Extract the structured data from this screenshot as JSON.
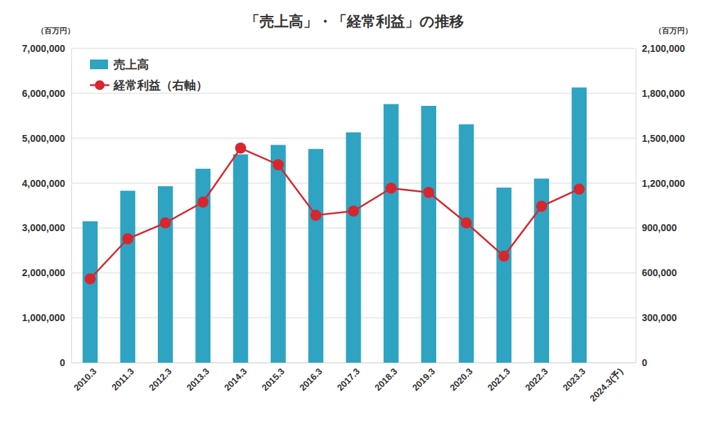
{
  "chart_data": {
    "type": "bar",
    "title": "「売上高」・「経常利益」の推移",
    "ylabel": "（百万円）",
    "y2label": "（百万円）",
    "categories": [
      "2010.3",
      "2011.3",
      "2012.3",
      "2013.3",
      "2014.3",
      "2015.3",
      "2016.3",
      "2017.3",
      "2018.3",
      "2019.3",
      "2020.3",
      "2021.3",
      "2022.3",
      "2023.3",
      "2024.3(予)"
    ],
    "series": [
      {
        "name": "売上高",
        "type": "bar",
        "color": "#2ea3c2",
        "values": [
          3150000,
          3830000,
          3930000,
          4320000,
          4640000,
          4850000,
          4760000,
          5130000,
          5760000,
          5720000,
          5310000,
          3900000,
          4100000,
          6130000,
          null
        ]
      },
      {
        "name": "経常利益（右軸）",
        "type": "line",
        "axis": "y2",
        "color": "#d7262e",
        "marker": "circle",
        "values": [
          560000,
          828000,
          934000,
          1073000,
          1434000,
          1323000,
          985000,
          1013000,
          1166000,
          1138000,
          934000,
          712000,
          1045000,
          1160000,
          null
        ]
      }
    ],
    "ylim": [
      0,
      7000000
    ],
    "yticks": [
      0,
      {
        "value": 1000000,
        "label": "1,000,000"
      },
      {
        "value": 2000000,
        "label": "2,000,000"
      },
      {
        "value": 3000000,
        "label": "3,000,000"
      },
      {
        "value": 4000000,
        "label": "4,000,000"
      },
      {
        "value": 5000000,
        "label": "5,000,000"
      },
      {
        "value": 6000000,
        "label": "6,000,000"
      },
      {
        "value": 7000000,
        "label": "7,000,000"
      }
    ],
    "y2lim": [
      0,
      2100000
    ],
    "y2ticks": [
      0,
      {
        "value": 300000,
        "label": "300,000"
      },
      {
        "value": 600000,
        "label": "600,000"
      },
      {
        "value": 900000,
        "label": "900,000"
      },
      {
        "value": 1200000,
        "label": "1,200,000"
      },
      {
        "value": 1500000,
        "label": "1,500,000"
      },
      {
        "value": 1800000,
        "label": "1,800,000"
      },
      {
        "value": 2100000,
        "label": "2,100,000"
      }
    ],
    "grid": true,
    "legend": "upper left"
  }
}
